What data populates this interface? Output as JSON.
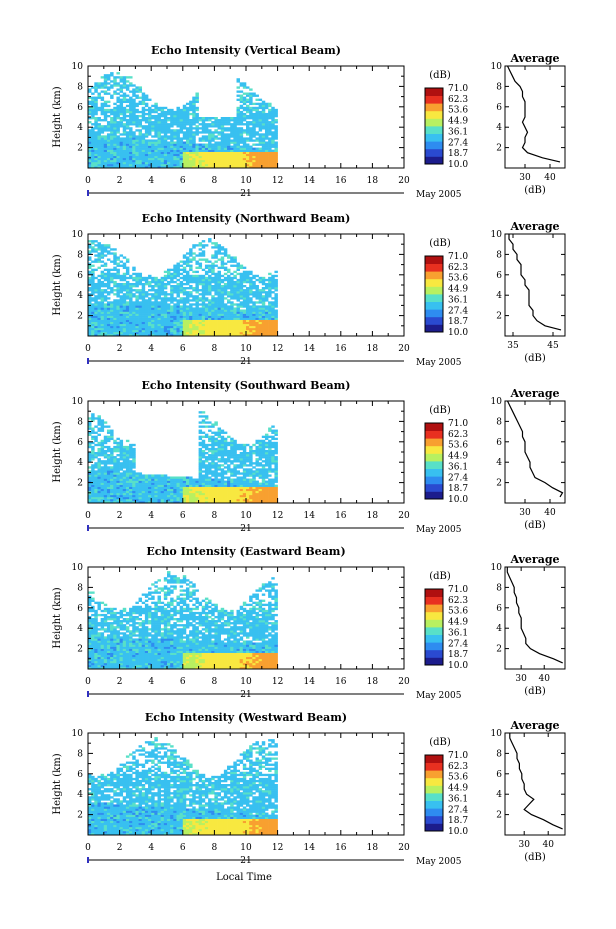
{
  "figure": {
    "footer_label": "Local Time",
    "date_label": "May 2005",
    "day_label": "21",
    "x_ticks": [
      "0",
      "2",
      "4",
      "6",
      "8",
      "10",
      "12",
      "14",
      "16",
      "18",
      "20"
    ],
    "y_ticks": [
      "2",
      "4",
      "6",
      "8",
      "10"
    ],
    "ylabel": "Height (km)",
    "colorbar_unit": "(dB)",
    "colorbar_ticks": [
      "71.0",
      "62.3",
      "53.6",
      "44.9",
      "36.1",
      "27.4",
      "18.7",
      "10.0"
    ],
    "colorbar_colors": [
      "#1c1c8c",
      "#2a4ad0",
      "#2e8cf0",
      "#38c0f0",
      "#58e0c8",
      "#b8f060",
      "#f8e840",
      "#f8a030",
      "#e83020",
      "#b01010"
    ],
    "average_title": "Average",
    "average_xlabel": "(dB)"
  },
  "chart_data": [
    {
      "type": "heatmap",
      "title": "Echo Intensity (Vertical Beam)",
      "ylabel": "Height (km)",
      "xlim": [
        0,
        20
      ],
      "ylim": [
        0,
        10
      ],
      "data_end_hour": 12,
      "profile": {
        "title": "Average",
        "xlabel": "(dB)",
        "xticks": [
          "30",
          "40"
        ],
        "xlim": [
          22,
          46
        ],
        "heights": [
          0.6,
          1.0,
          1.5,
          2.0,
          2.5,
          3.0,
          3.5,
          4.0,
          4.5,
          5.0,
          5.5,
          6.0,
          6.5,
          7.0,
          7.5,
          8.0,
          8.5,
          9.0,
          9.5,
          10.0
        ],
        "values": [
          44,
          37,
          31,
          29,
          30,
          30,
          31,
          30,
          29,
          30,
          30,
          30,
          30,
          29,
          29,
          28,
          26,
          25,
          24,
          23
        ]
      }
    },
    {
      "type": "heatmap",
      "title": "Echo Intensity (Northward Beam)",
      "ylabel": "Height (km)",
      "xlim": [
        0,
        20
      ],
      "ylim": [
        0,
        10
      ],
      "data_end_hour": 12,
      "profile": {
        "title": "Average",
        "xlabel": "(dB)",
        "xticks": [
          "35",
          "45"
        ],
        "xlim": [
          33,
          48
        ],
        "heights": [
          0.6,
          1.0,
          1.5,
          2.0,
          2.5,
          3.0,
          3.5,
          4.0,
          4.5,
          5.0,
          5.5,
          6.0,
          6.5,
          7.0,
          7.5,
          8.0,
          8.5,
          9.0,
          9.5,
          10.0
        ],
        "values": [
          47,
          43,
          41,
          40,
          40,
          39,
          39,
          39,
          39,
          38,
          38,
          37,
          37,
          37,
          36,
          36,
          35,
          35,
          34,
          34
        ]
      }
    },
    {
      "type": "heatmap",
      "title": "Echo Intensity (Southward Beam)",
      "ylabel": "Height (km)",
      "xlim": [
        0,
        20
      ],
      "ylim": [
        0,
        10
      ],
      "data_end_hour": 12,
      "profile": {
        "title": "Average",
        "xlabel": "(dB)",
        "xticks": [
          "30",
          "40"
        ],
        "xlim": [
          22,
          46
        ],
        "heights": [
          0.6,
          1.0,
          1.5,
          2.0,
          2.5,
          3.0,
          3.5,
          4.0,
          4.5,
          5.0,
          5.5,
          6.0,
          6.5,
          7.0,
          7.5,
          8.0,
          8.5,
          9.0,
          9.5,
          10.0
        ],
        "values": [
          44,
          45,
          41,
          38,
          34,
          33,
          32,
          32,
          31,
          30,
          30,
          30,
          29,
          29,
          28,
          27,
          26,
          25,
          24,
          23
        ]
      }
    },
    {
      "type": "heatmap",
      "title": "Echo Intensity (Eastward Beam)",
      "ylabel": "Height (km)",
      "xlim": [
        0,
        20
      ],
      "ylim": [
        0,
        10
      ],
      "data_end_hour": 12,
      "profile": {
        "title": "Average",
        "xlabel": "(dB)",
        "xticks": [
          "30",
          "40"
        ],
        "xlim": [
          23,
          49
        ],
        "heights": [
          0.6,
          1.0,
          1.5,
          2.0,
          2.5,
          3.0,
          3.5,
          4.0,
          4.5,
          5.0,
          5.5,
          6.0,
          6.5,
          7.0,
          7.5,
          8.0,
          8.5,
          9.0,
          9.5,
          10.0
        ],
        "values": [
          48,
          44,
          38,
          34,
          32,
          32,
          31,
          30,
          30,
          30,
          29,
          29,
          28,
          28,
          27,
          27,
          26,
          25,
          24,
          24
        ]
      }
    },
    {
      "type": "heatmap",
      "title": "Echo Intensity (Westward Beam)",
      "ylabel": "Height (km)",
      "xlim": [
        0,
        20
      ],
      "ylim": [
        0,
        10
      ],
      "data_end_hour": 12,
      "profile": {
        "title": "Average",
        "xlabel": "(dB)",
        "xticks": [
          "30",
          "40"
        ],
        "xlim": [
          22,
          47
        ],
        "heights": [
          0.6,
          1.0,
          1.5,
          2.0,
          2.5,
          3.0,
          3.5,
          4.0,
          4.5,
          5.0,
          5.5,
          6.0,
          6.5,
          7.0,
          7.5,
          8.0,
          8.5,
          9.0,
          9.5,
          10.0
        ],
        "values": [
          46,
          42,
          38,
          33,
          30,
          32,
          34,
          31,
          30,
          30,
          29,
          29,
          28,
          28,
          27,
          27,
          26,
          25,
          24,
          24
        ]
      }
    }
  ]
}
